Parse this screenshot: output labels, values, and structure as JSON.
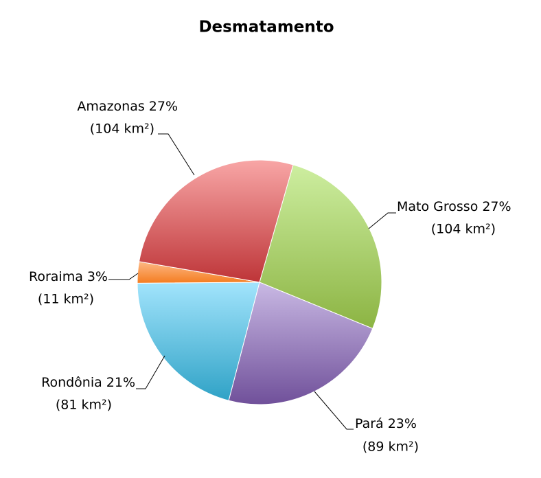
{
  "chart_data": {
    "type": "pie",
    "title": "Desmatamento",
    "categories": [
      "Mato Grosso",
      "Pará",
      "Rondônia",
      "Roraima",
      "Amazonas"
    ],
    "values": [
      104,
      89,
      81,
      11,
      104
    ],
    "value_labels": [
      "(104 km²)",
      "(89 km²)",
      "(81 km²)",
      "(11 km²)",
      "(104 km²)"
    ],
    "percent_labels": [
      "27%",
      "23%",
      "21%",
      "3%",
      "27%"
    ],
    "colors": [
      [
        "#cdeea0",
        "#8cb443"
      ],
      [
        "#c9b9e4",
        "#70509a"
      ],
      [
        "#a2e4fc",
        "#2fa2c6"
      ],
      [
        "#fdb985",
        "#f47c20"
      ],
      [
        "#f8a6a6",
        "#be3538"
      ]
    ]
  }
}
